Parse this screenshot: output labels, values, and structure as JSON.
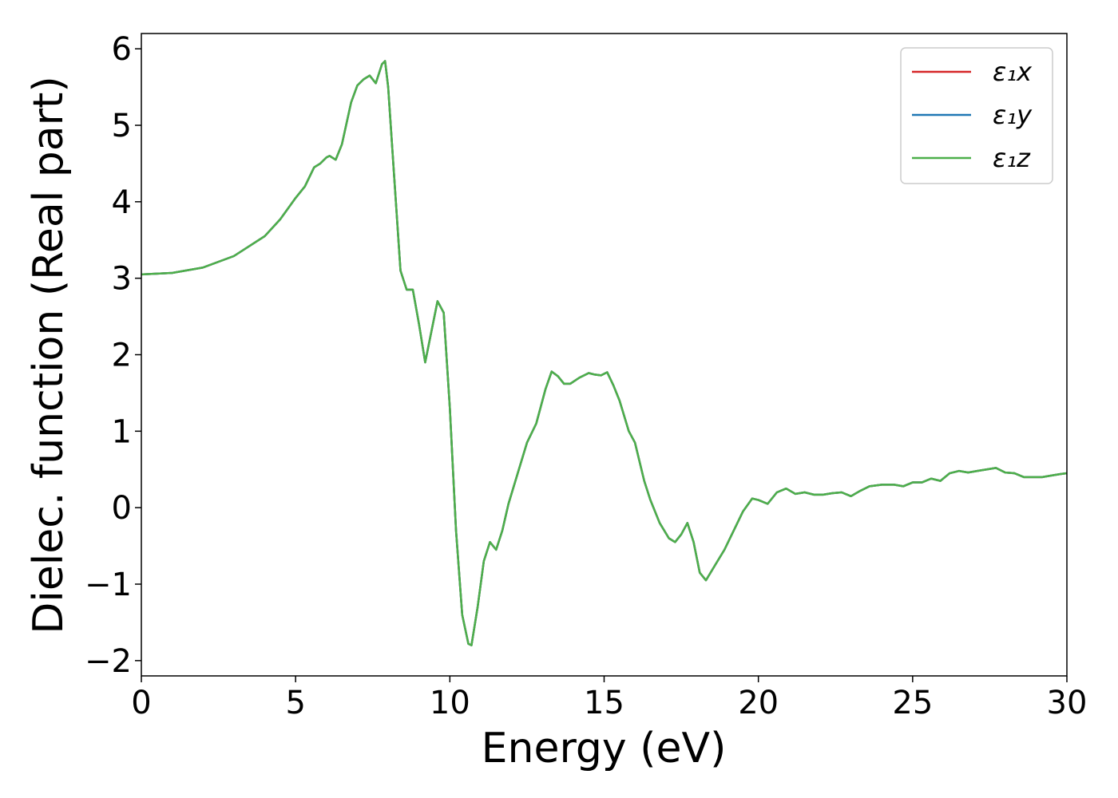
{
  "chart_data": {
    "type": "line",
    "title": "",
    "xlabel": "Energy (eV)",
    "ylabel": "Dielec. function (Real part)",
    "xlim": [
      0,
      30
    ],
    "ylim": [
      -2.2,
      6.2
    ],
    "xticks": [
      0,
      5,
      10,
      15,
      20,
      25,
      30
    ],
    "xtick_labels": [
      "0",
      "5",
      "10",
      "15",
      "20",
      "25",
      "30"
    ],
    "yticks": [
      -2,
      -1,
      0,
      1,
      2,
      3,
      4,
      5,
      6
    ],
    "ytick_labels": [
      "−2",
      "−1",
      "0",
      "1",
      "2",
      "3",
      "4",
      "5",
      "6"
    ],
    "grid": false,
    "legend_position": "top-right",
    "x": [
      0,
      1,
      2,
      3,
      4,
      4.5,
      5,
      5.3,
      5.6,
      5.8,
      6.0,
      6.1,
      6.3,
      6.5,
      6.8,
      7.0,
      7.2,
      7.4,
      7.6,
      7.8,
      7.9,
      8.0,
      8.2,
      8.4,
      8.6,
      8.8,
      9.0,
      9.2,
      9.4,
      9.6,
      9.8,
      10.0,
      10.2,
      10.4,
      10.6,
      10.7,
      10.9,
      11.1,
      11.3,
      11.5,
      11.7,
      11.9,
      12.2,
      12.5,
      12.8,
      13.1,
      13.3,
      13.5,
      13.7,
      13.9,
      14.2,
      14.5,
      14.7,
      14.9,
      15.1,
      15.3,
      15.5,
      15.8,
      16.0,
      16.3,
      16.5,
      16.8,
      17.1,
      17.3,
      17.5,
      17.7,
      17.9,
      18.1,
      18.3,
      18.6,
      18.9,
      19.2,
      19.5,
      19.8,
      20.0,
      20.3,
      20.6,
      20.9,
      21.2,
      21.5,
      21.8,
      22.1,
      22.4,
      22.7,
      23.0,
      23.3,
      23.6,
      24.0,
      24.4,
      24.7,
      25.0,
      25.3,
      25.6,
      25.9,
      26.2,
      26.5,
      26.8,
      27.1,
      27.4,
      27.7,
      28.0,
      28.3,
      28.6,
      28.9,
      29.2,
      29.5,
      29.8,
      30.0
    ],
    "series": [
      {
        "name": "ε₁x",
        "color": "#d62728",
        "values": [
          3.05,
          3.07,
          3.14,
          3.29,
          3.55,
          3.77,
          4.05,
          4.2,
          4.45,
          4.5,
          4.58,
          4.6,
          4.55,
          4.75,
          5.3,
          5.52,
          5.6,
          5.65,
          5.55,
          5.8,
          5.84,
          5.5,
          4.3,
          3.1,
          2.85,
          2.85,
          2.4,
          1.9,
          2.3,
          2.7,
          2.55,
          1.3,
          -0.3,
          -1.4,
          -1.78,
          -1.8,
          -1.3,
          -0.7,
          -0.45,
          -0.55,
          -0.3,
          0.05,
          0.45,
          0.85,
          1.1,
          1.55,
          1.78,
          1.72,
          1.62,
          1.62,
          1.7,
          1.76,
          1.74,
          1.73,
          1.77,
          1.6,
          1.4,
          1.0,
          0.85,
          0.35,
          0.1,
          -0.2,
          -0.4,
          -0.45,
          -0.35,
          -0.2,
          -0.45,
          -0.85,
          -0.95,
          -0.75,
          -0.55,
          -0.3,
          -0.05,
          0.12,
          0.1,
          0.05,
          0.2,
          0.25,
          0.18,
          0.2,
          0.17,
          0.17,
          0.19,
          0.2,
          0.15,
          0.22,
          0.28,
          0.3,
          0.3,
          0.28,
          0.33,
          0.33,
          0.38,
          0.35,
          0.45,
          0.48,
          0.46,
          0.48,
          0.5,
          0.52,
          0.46,
          0.45,
          0.4,
          0.4,
          0.4,
          0.42,
          0.44,
          0.45
        ]
      },
      {
        "name": "ε₁y",
        "color": "#1f77b4",
        "values": [
          3.05,
          3.07,
          3.14,
          3.29,
          3.55,
          3.77,
          4.05,
          4.2,
          4.45,
          4.5,
          4.58,
          4.6,
          4.55,
          4.75,
          5.3,
          5.52,
          5.6,
          5.65,
          5.55,
          5.8,
          5.84,
          5.5,
          4.3,
          3.1,
          2.85,
          2.85,
          2.4,
          1.9,
          2.3,
          2.7,
          2.55,
          1.3,
          -0.3,
          -1.4,
          -1.78,
          -1.8,
          -1.3,
          -0.7,
          -0.45,
          -0.55,
          -0.3,
          0.05,
          0.45,
          0.85,
          1.1,
          1.55,
          1.78,
          1.72,
          1.62,
          1.62,
          1.7,
          1.76,
          1.74,
          1.73,
          1.77,
          1.6,
          1.4,
          1.0,
          0.85,
          0.35,
          0.1,
          -0.2,
          -0.4,
          -0.45,
          -0.35,
          -0.2,
          -0.45,
          -0.85,
          -0.95,
          -0.75,
          -0.55,
          -0.3,
          -0.05,
          0.12,
          0.1,
          0.05,
          0.2,
          0.25,
          0.18,
          0.2,
          0.17,
          0.17,
          0.19,
          0.2,
          0.15,
          0.22,
          0.28,
          0.3,
          0.3,
          0.28,
          0.33,
          0.33,
          0.38,
          0.35,
          0.45,
          0.48,
          0.46,
          0.48,
          0.5,
          0.52,
          0.46,
          0.45,
          0.4,
          0.4,
          0.4,
          0.42,
          0.44,
          0.45
        ]
      },
      {
        "name": "ε₁z",
        "color": "#4daf4a",
        "values": [
          3.05,
          3.07,
          3.14,
          3.29,
          3.55,
          3.77,
          4.05,
          4.2,
          4.45,
          4.5,
          4.58,
          4.6,
          4.55,
          4.75,
          5.3,
          5.52,
          5.6,
          5.65,
          5.55,
          5.8,
          5.84,
          5.5,
          4.3,
          3.1,
          2.85,
          2.85,
          2.4,
          1.9,
          2.3,
          2.7,
          2.55,
          1.3,
          -0.3,
          -1.4,
          -1.78,
          -1.8,
          -1.3,
          -0.7,
          -0.45,
          -0.55,
          -0.3,
          0.05,
          0.45,
          0.85,
          1.1,
          1.55,
          1.78,
          1.72,
          1.62,
          1.62,
          1.7,
          1.76,
          1.74,
          1.73,
          1.77,
          1.6,
          1.4,
          1.0,
          0.85,
          0.35,
          0.1,
          -0.2,
          -0.4,
          -0.45,
          -0.35,
          -0.2,
          -0.45,
          -0.85,
          -0.95,
          -0.75,
          -0.55,
          -0.3,
          -0.05,
          0.12,
          0.1,
          0.05,
          0.2,
          0.25,
          0.18,
          0.2,
          0.17,
          0.17,
          0.19,
          0.2,
          0.15,
          0.22,
          0.28,
          0.3,
          0.3,
          0.28,
          0.33,
          0.33,
          0.38,
          0.35,
          0.45,
          0.48,
          0.46,
          0.48,
          0.5,
          0.52,
          0.46,
          0.45,
          0.4,
          0.4,
          0.4,
          0.42,
          0.44,
          0.45
        ]
      }
    ]
  }
}
